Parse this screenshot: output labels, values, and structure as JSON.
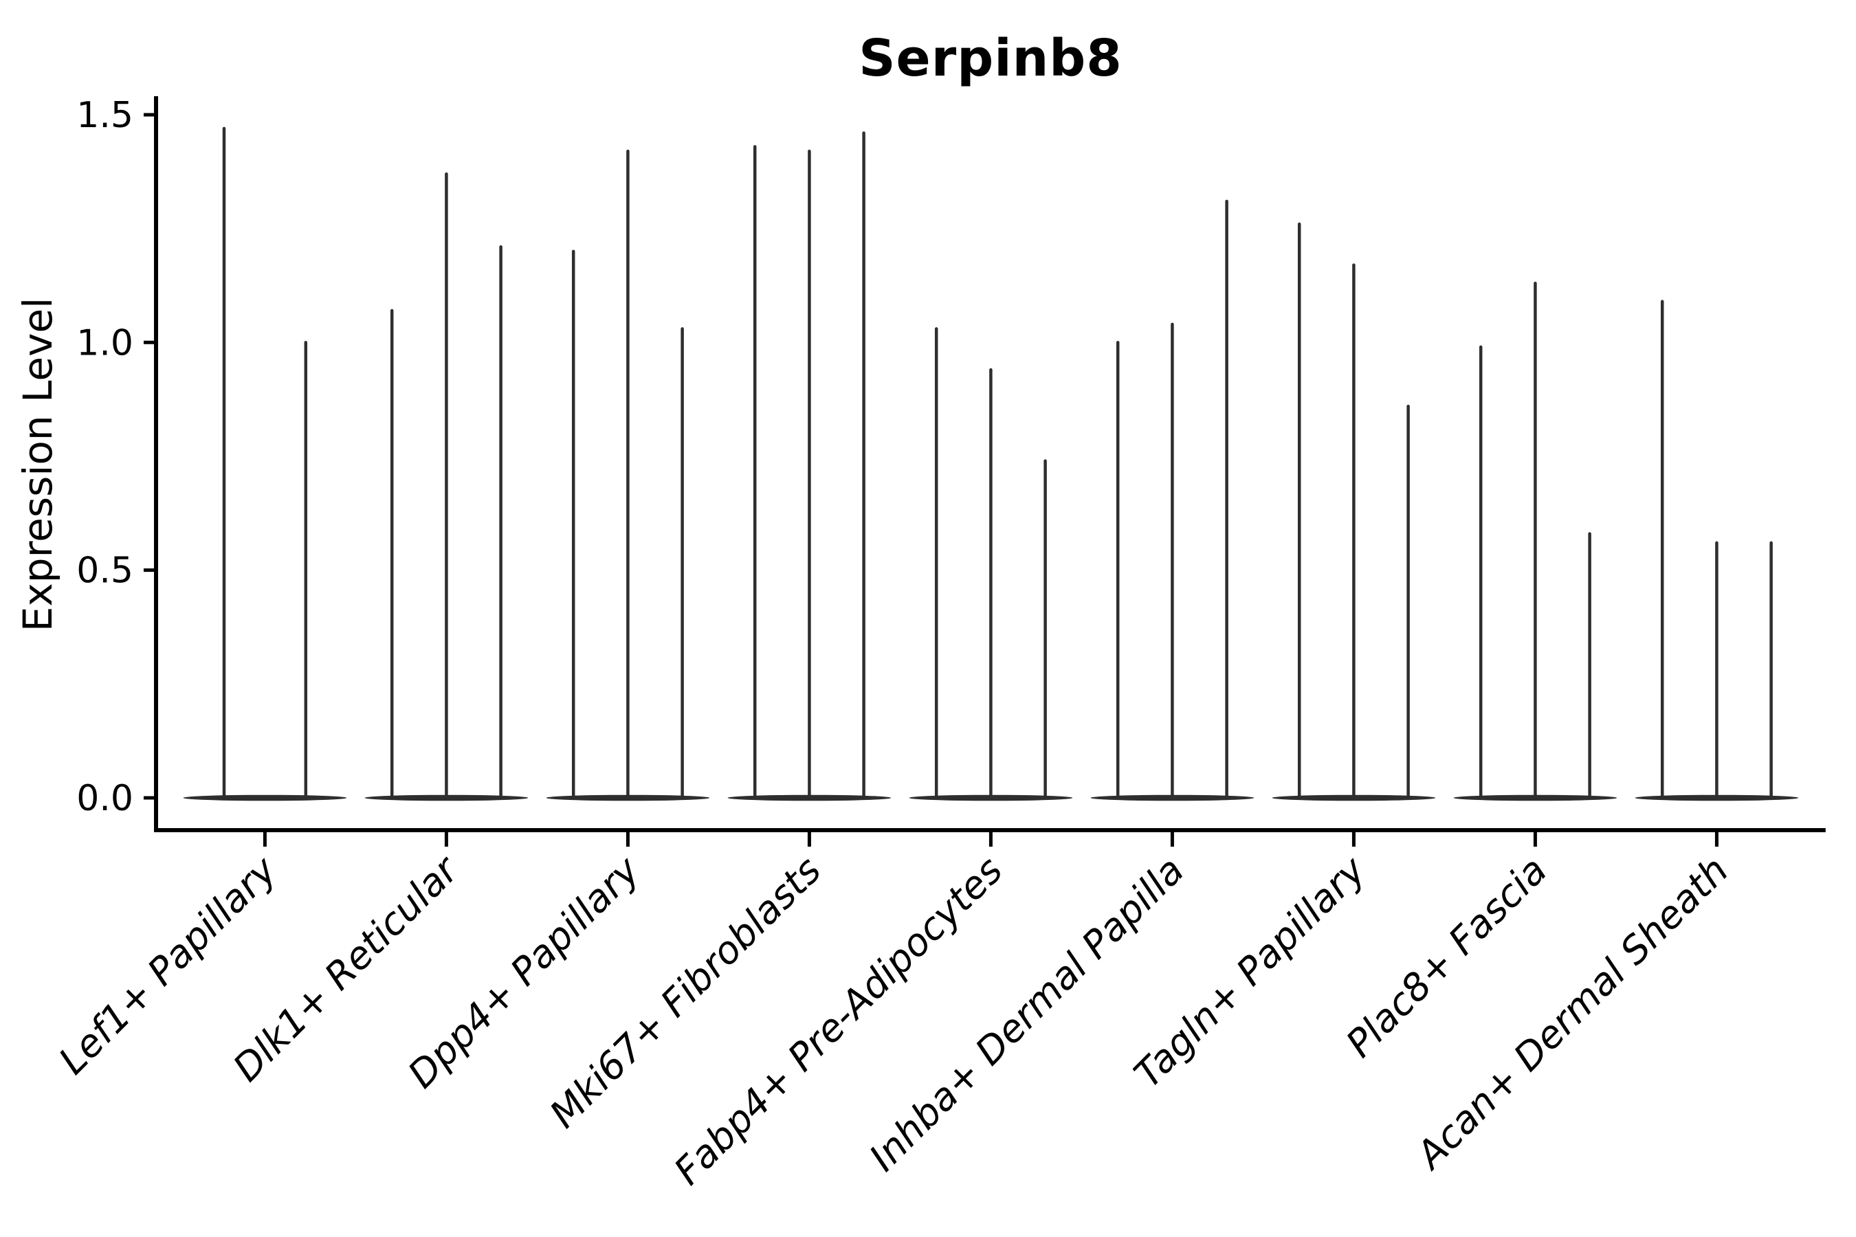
{
  "figure": {
    "title": "Serpinb8",
    "y_axis": {
      "label": "Expression Level",
      "ticks": [
        "0.0",
        "0.5",
        "1.0",
        "1.5"
      ]
    },
    "colors": {
      "background": "#ffffff",
      "axis": "#000000",
      "text": "#000000",
      "violin": "#2e2e2e"
    }
  },
  "chart_data": {
    "type": "violin",
    "title": "Serpinb8",
    "xlabel": "",
    "ylabel": "Expression Level",
    "ylim": [
      0.0,
      1.54
    ],
    "yticks": [
      0.0,
      0.5,
      1.0,
      1.5
    ],
    "grid": false,
    "legend": null,
    "orientation": "vertical",
    "style": "Each violin is a flat mass of zero values at expression 0 with a hair-thin spike rising to the maximum expression value; violins are dark gray on white, axes black, x labels italic and rotated 45 degrees.",
    "categories": [
      "Lef1+ Papillary",
      "Dlk1+ Reticular",
      "Dpp4+ Papillary",
      "Mki67+ Fibroblasts",
      "Fabp4+ Pre-Adipocytes",
      "Inhba+ Dermal Papilla",
      "Tagln+ Papillary",
      "Plac8+ Fascia",
      "Acan+ Dermal Sheath"
    ],
    "groups": [
      {
        "category": "Lef1+ Papillary",
        "violin_baseline": 0.0,
        "violin_peaks": [
          1.47,
          1.0
        ]
      },
      {
        "category": "Dlk1+ Reticular",
        "violin_baseline": 0.0,
        "violin_peaks": [
          1.07,
          1.37,
          1.21
        ]
      },
      {
        "category": "Dpp4+ Papillary",
        "violin_baseline": 0.0,
        "violin_peaks": [
          1.2,
          1.42,
          1.03
        ]
      },
      {
        "category": "Mki67+ Fibroblasts",
        "violin_baseline": 0.0,
        "violin_peaks": [
          1.43,
          1.42,
          1.46
        ]
      },
      {
        "category": "Fabp4+ Pre-Adipocytes",
        "violin_baseline": 0.0,
        "violin_peaks": [
          1.03,
          0.94,
          0.74
        ]
      },
      {
        "category": "Inhba+ Dermal Papilla",
        "violin_baseline": 0.0,
        "violin_peaks": [
          1.0,
          1.04,
          1.31
        ]
      },
      {
        "category": "Tagln+ Papillary",
        "violin_baseline": 0.0,
        "violin_peaks": [
          1.26,
          1.17,
          0.86
        ]
      },
      {
        "category": "Plac8+ Fascia",
        "violin_baseline": 0.0,
        "violin_peaks": [
          0.99,
          1.13,
          0.58
        ]
      },
      {
        "category": "Acan+ Dermal Sheath",
        "violin_baseline": 0.0,
        "violin_peaks": [
          1.09,
          0.56,
          0.56
        ]
      }
    ]
  }
}
